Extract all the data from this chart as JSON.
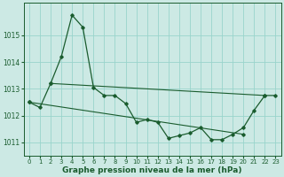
{
  "xlabel": "Graphe pression niveau de la mer (hPa)",
  "xlim": [
    -0.5,
    23.5
  ],
  "ylim": [
    1010.5,
    1016.2
  ],
  "yticks": [
    1011,
    1012,
    1013,
    1014,
    1015
  ],
  "xticks": [
    0,
    1,
    2,
    3,
    4,
    5,
    6,
    7,
    8,
    9,
    10,
    11,
    12,
    13,
    14,
    15,
    16,
    17,
    18,
    19,
    20,
    21,
    22,
    23
  ],
  "background_color": "#cce9e4",
  "grid_color": "#99d4cc",
  "line_color": "#1a5c2e",
  "data_x": [
    0,
    1,
    2,
    3,
    4,
    5,
    6,
    7,
    8,
    9,
    10,
    11,
    12,
    13,
    14,
    15,
    16,
    17,
    18,
    19,
    20,
    21,
    22,
    23
  ],
  "data_y": [
    1012.5,
    1012.3,
    1013.2,
    1014.2,
    1015.75,
    1015.3,
    1013.05,
    1012.75,
    1012.75,
    1012.45,
    1011.75,
    1011.85,
    1011.75,
    1011.15,
    1011.25,
    1011.35,
    1011.55,
    1011.1,
    1011.1,
    1011.3,
    1011.55,
    1012.2,
    1012.75,
    1012.75
  ],
  "upper_line_x": [
    2,
    22
  ],
  "upper_line_y": [
    1013.2,
    1012.75
  ],
  "lower_line_x": [
    0,
    20
  ],
  "lower_line_y": [
    1012.5,
    1011.3
  ],
  "tick_fontsize": 5,
  "label_fontsize": 6.5
}
